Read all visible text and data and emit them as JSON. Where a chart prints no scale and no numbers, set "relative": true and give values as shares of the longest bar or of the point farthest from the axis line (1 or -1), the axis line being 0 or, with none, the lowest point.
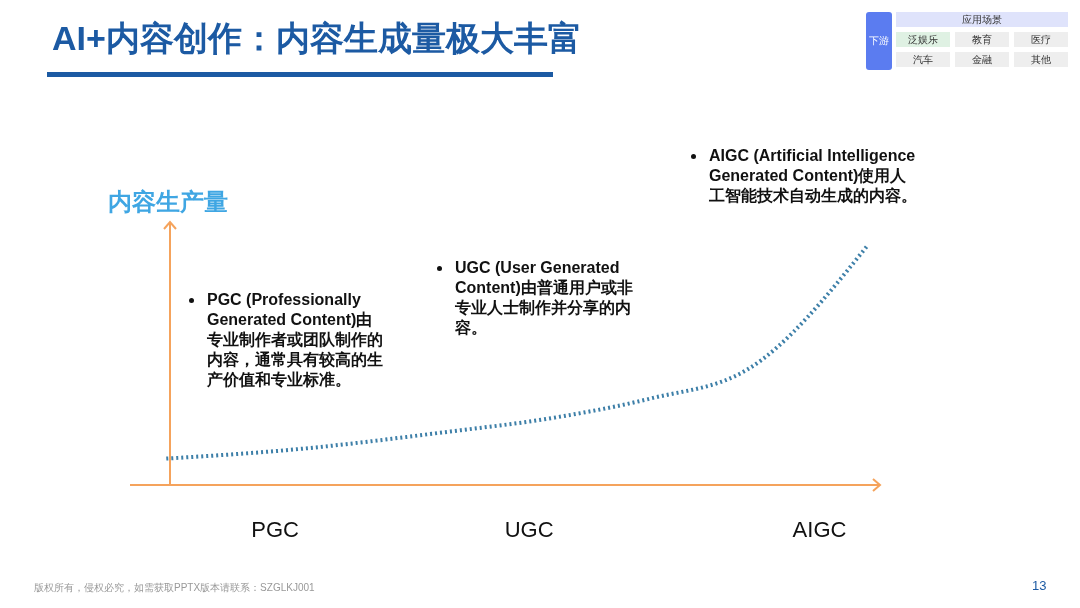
{
  "chart_data": {
    "type": "line",
    "title": "AI+内容创作：内容生成量极大丰富",
    "ylabel": "内容生产量",
    "relative": true,
    "line_style": "dotted",
    "marker": "none",
    "categories": [
      null,
      null,
      null,
      null,
      null,
      null,
      null,
      null,
      null,
      null,
      null,
      null,
      "PGC",
      null,
      null,
      null,
      null,
      null,
      null,
      null,
      null,
      null,
      null,
      null,
      null,
      null,
      null,
      null,
      null,
      null,
      null,
      null,
      null,
      "UGC",
      null,
      null,
      null,
      null,
      null,
      null,
      null,
      null,
      null,
      null,
      null,
      null,
      null,
      null,
      null,
      null,
      null,
      null,
      null,
      null,
      null,
      null,
      null,
      "AIGC",
      null,
      null,
      null,
      null,
      null
    ],
    "series": [
      {
        "color": "#3d7fa8",
        "values": [
          null,
          null,
          null,
          0.11,
          null,
          null,
          null,
          null,
          null,
          null,
          null,
          null,
          null,
          null,
          0.15,
          null,
          null,
          null,
          null,
          null,
          null,
          null,
          null,
          null,
          null,
          null,
          0.22,
          null,
          null,
          null,
          null,
          null,
          null,
          null,
          null,
          0.28,
          null,
          null,
          null,
          null,
          null,
          null,
          null,
          0.36,
          null,
          null,
          null,
          null,
          null,
          null,
          null,
          0.48,
          null,
          null,
          null,
          null,
          null,
          null,
          null,
          null,
          null,
          1,
          null
        ]
      }
    ],
    "annotations": [
      "PGC (Professionally Generated Content)由专业制作者或团队制作的内容，通常具有较高的生产价值和专业标准。",
      "UGC (User Generated Content)由普通用户或非专业人士制作并分享的内容。",
      "AIGC (Artificial Intelligence Generated Content)使用人工智能技术自动生成的内容。",
      "版权所有，侵权必究，如需获取PPTX版本请联系：SZGLKJ001",
      "13",
      "应用场景",
      "下游",
      "泛娱乐",
      "教育",
      "医疗",
      "汽车",
      "金融",
      "其他"
    ]
  }
}
